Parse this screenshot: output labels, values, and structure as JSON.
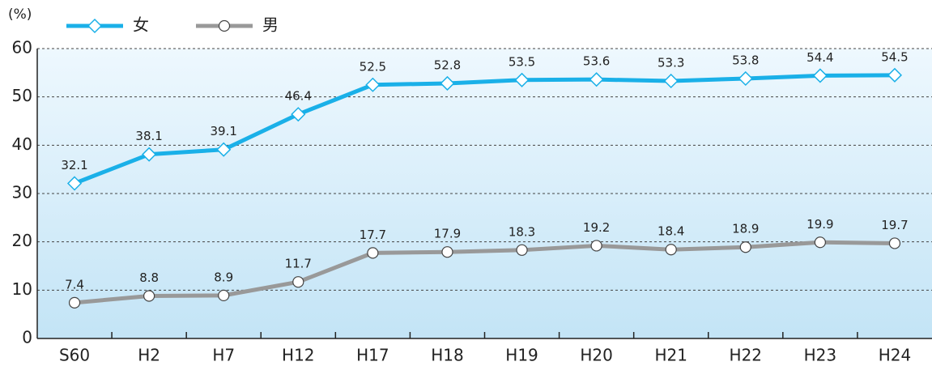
{
  "chart_data": {
    "type": "line",
    "y_label": "(%)",
    "categories": [
      "S60",
      "H2",
      "H7",
      "H12",
      "H17",
      "H18",
      "H19",
      "H20",
      "H21",
      "H22",
      "H23",
      "H24"
    ],
    "series": [
      {
        "name": "女",
        "color": "#1ab0e8",
        "marker": "diamond",
        "values": [
          32.1,
          38.1,
          39.1,
          46.4,
          52.5,
          52.8,
          53.5,
          53.6,
          53.3,
          53.8,
          54.4,
          54.5
        ]
      },
      {
        "name": "男",
        "color": "#999999",
        "marker": "circle",
        "values": [
          7.4,
          8.8,
          8.9,
          11.7,
          17.7,
          17.9,
          18.3,
          19.2,
          18.4,
          18.9,
          19.9,
          19.7
        ]
      }
    ],
    "ylim": [
      0,
      60
    ],
    "yticks": [
      0,
      10,
      20,
      30,
      40,
      50,
      60
    ],
    "grid": true
  }
}
